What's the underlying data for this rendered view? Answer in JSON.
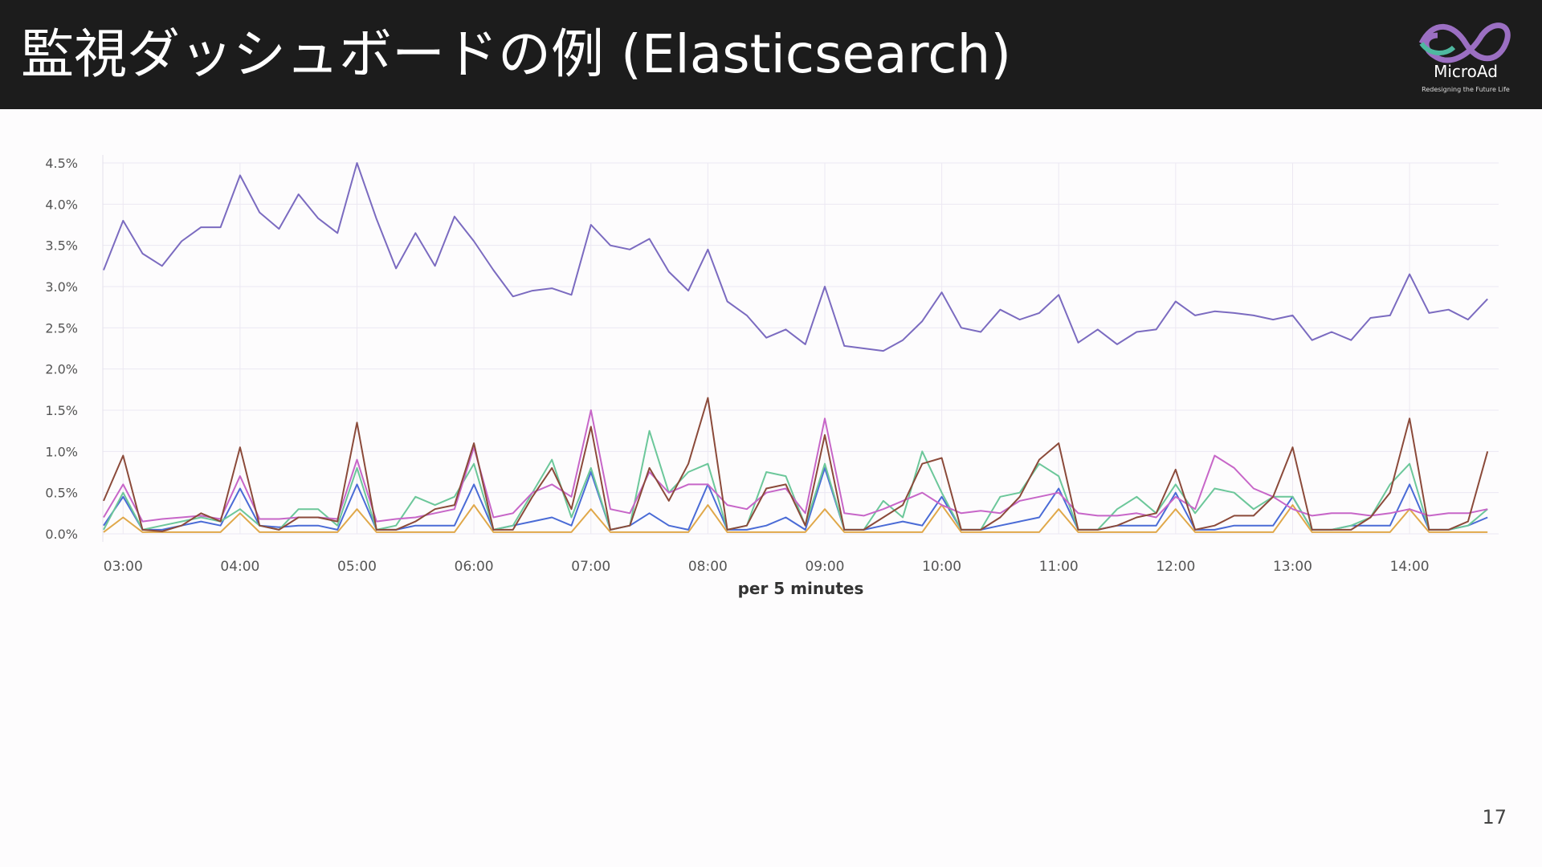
{
  "header": {
    "title": "監視ダッシュボードの例 (Elasticsearch)",
    "logo": "MicroAd",
    "tagline": "Redesigning the Future Life"
  },
  "page_number": 17,
  "chart_data": {
    "type": "line",
    "xlabel": "per 5 minutes",
    "grid": true,
    "x": [
      "02:50",
      "03:00",
      "03:10",
      "03:20",
      "03:30",
      "03:40",
      "03:50",
      "04:00",
      "04:10",
      "04:20",
      "04:30",
      "04:40",
      "04:50",
      "05:00",
      "05:10",
      "05:20",
      "05:30",
      "05:40",
      "05:50",
      "06:00",
      "06:10",
      "06:20",
      "06:30",
      "06:40",
      "06:50",
      "07:00",
      "07:10",
      "07:20",
      "07:30",
      "07:40",
      "07:50",
      "08:00",
      "08:10",
      "08:20",
      "08:30",
      "08:40",
      "08:50",
      "09:00",
      "09:10",
      "09:20",
      "09:30",
      "09:40",
      "09:50",
      "10:00",
      "10:10",
      "10:20",
      "10:30",
      "10:40",
      "10:50",
      "11:00",
      "11:10",
      "11:20",
      "11:30",
      "11:40",
      "11:50",
      "12:00",
      "12:10",
      "12:20",
      "12:30",
      "12:40",
      "12:50",
      "13:00",
      "13:10",
      "13:20",
      "13:30",
      "13:40",
      "13:50",
      "14:00",
      "14:10",
      "14:20",
      "14:30",
      "14:40"
    ],
    "xticks": [
      "03:00",
      "04:00",
      "05:00",
      "06:00",
      "07:00",
      "08:00",
      "09:00",
      "10:00",
      "11:00",
      "12:00",
      "13:00",
      "14:00"
    ],
    "ylim": [
      0,
      4.5
    ],
    "yticks": [
      {
        "value": 0,
        "label": "0.0%"
      },
      {
        "value": 0.5,
        "label": "0.5%"
      },
      {
        "value": 1,
        "label": "1.0%"
      },
      {
        "value": 1.5,
        "label": "1.5%"
      },
      {
        "value": 2,
        "label": "2.0%"
      },
      {
        "value": 2.5,
        "label": "2.5%"
      },
      {
        "value": 3,
        "label": "3.0%"
      },
      {
        "value": 3.5,
        "label": "3.5%"
      },
      {
        "value": 4,
        "label": "4.0%"
      },
      {
        "value": 4.5,
        "label": "4.5%"
      }
    ],
    "series": [
      {
        "color": "#e0a84a",
        "values": [
          0.02,
          0.2,
          0.02,
          0.02,
          0.02,
          0.02,
          0.02,
          0.25,
          0.02,
          0.02,
          0.02,
          0.02,
          0.02,
          0.3,
          0.02,
          0.02,
          0.02,
          0.02,
          0.02,
          0.35,
          0.02,
          0.02,
          0.02,
          0.02,
          0.02,
          0.3,
          0.02,
          0.02,
          0.02,
          0.02,
          0.02,
          0.35,
          0.02,
          0.02,
          0.02,
          0.02,
          0.02,
          0.3,
          0.02,
          0.02,
          0.02,
          0.02,
          0.02,
          0.35,
          0.02,
          0.02,
          0.02,
          0.02,
          0.02,
          0.3,
          0.02,
          0.02,
          0.02,
          0.02,
          0.02,
          0.3,
          0.02,
          0.02,
          0.02,
          0.02,
          0.02,
          0.35,
          0.02,
          0.02,
          0.02,
          0.02,
          0.02,
          0.3,
          0.02,
          0.02,
          0.02,
          0.02
        ]
      },
      {
        "color": "#4a6bd6",
        "values": [
          0.1,
          0.45,
          0.05,
          0.05,
          0.1,
          0.15,
          0.1,
          0.55,
          0.1,
          0.08,
          0.1,
          0.1,
          0.05,
          0.6,
          0.05,
          0.05,
          0.1,
          0.1,
          0.1,
          0.6,
          0.05,
          0.1,
          0.15,
          0.2,
          0.1,
          0.75,
          0.05,
          0.1,
          0.25,
          0.1,
          0.05,
          0.6,
          0.05,
          0.05,
          0.1,
          0.2,
          0.05,
          0.8,
          0.05,
          0.05,
          0.1,
          0.15,
          0.1,
          0.45,
          0.05,
          0.05,
          0.1,
          0.15,
          0.2,
          0.55,
          0.05,
          0.05,
          0.1,
          0.1,
          0.1,
          0.5,
          0.05,
          0.05,
          0.1,
          0.1,
          0.1,
          0.45,
          0.05,
          0.05,
          0.1,
          0.1,
          0.1,
          0.6,
          0.05,
          0.05,
          0.1,
          0.2
        ]
      },
      {
        "color": "#6cc79a",
        "values": [
          0.05,
          0.5,
          0.05,
          0.1,
          0.15,
          0.2,
          0.15,
          0.3,
          0.1,
          0.05,
          0.3,
          0.3,
          0.1,
          0.8,
          0.05,
          0.1,
          0.45,
          0.35,
          0.45,
          0.85,
          0.05,
          0.1,
          0.5,
          0.9,
          0.2,
          0.8,
          0.05,
          0.1,
          1.25,
          0.5,
          0.75,
          0.85,
          0.05,
          0.1,
          0.75,
          0.7,
          0.1,
          0.85,
          0.05,
          0.05,
          0.4,
          0.2,
          1.0,
          0.5,
          0.05,
          0.05,
          0.45,
          0.5,
          0.85,
          0.7,
          0.05,
          0.05,
          0.3,
          0.45,
          0.25,
          0.6,
          0.25,
          0.55,
          0.5,
          0.3,
          0.45,
          0.45,
          0.05,
          0.05,
          0.1,
          0.2,
          0.6,
          0.85,
          0.05,
          0.05,
          0.1,
          0.3
        ]
      },
      {
        "color": "#c766c8",
        "values": [
          0.2,
          0.6,
          0.15,
          0.18,
          0.2,
          0.22,
          0.18,
          0.7,
          0.18,
          0.18,
          0.2,
          0.2,
          0.18,
          0.9,
          0.15,
          0.18,
          0.2,
          0.25,
          0.3,
          1.05,
          0.2,
          0.25,
          0.5,
          0.6,
          0.45,
          1.5,
          0.3,
          0.25,
          0.75,
          0.5,
          0.6,
          0.6,
          0.35,
          0.3,
          0.5,
          0.55,
          0.25,
          1.4,
          0.25,
          0.22,
          0.3,
          0.4,
          0.5,
          0.35,
          0.25,
          0.28,
          0.25,
          0.4,
          0.45,
          0.5,
          0.25,
          0.22,
          0.22,
          0.25,
          0.2,
          0.45,
          0.3,
          0.95,
          0.8,
          0.55,
          0.45,
          0.3,
          0.22,
          0.25,
          0.25,
          0.22,
          0.25,
          0.3,
          0.22,
          0.25,
          0.25,
          0.3
        ]
      },
      {
        "color": "#8b4a3a",
        "values": [
          0.4,
          0.95,
          0.05,
          0.03,
          0.1,
          0.25,
          0.15,
          1.05,
          0.1,
          0.05,
          0.2,
          0.2,
          0.15,
          1.35,
          0.05,
          0.05,
          0.15,
          0.3,
          0.35,
          1.1,
          0.05,
          0.05,
          0.45,
          0.8,
          0.3,
          1.3,
          0.05,
          0.1,
          0.8,
          0.4,
          0.85,
          1.65,
          0.05,
          0.1,
          0.55,
          0.6,
          0.1,
          1.2,
          0.05,
          0.05,
          0.2,
          0.35,
          0.85,
          0.92,
          0.05,
          0.05,
          0.2,
          0.45,
          0.9,
          1.1,
          0.05,
          0.05,
          0.1,
          0.2,
          0.25,
          0.78,
          0.05,
          0.1,
          0.22,
          0.22,
          0.45,
          1.05,
          0.05,
          0.05,
          0.05,
          0.2,
          0.5,
          1.4,
          0.05,
          0.05,
          0.15,
          1.0
        ]
      },
      {
        "color": "#7b6bc0",
        "values": [
          3.2,
          3.8,
          3.4,
          3.25,
          3.55,
          3.72,
          3.72,
          4.35,
          3.9,
          3.7,
          4.12,
          3.83,
          3.65,
          4.5,
          3.82,
          3.22,
          3.65,
          3.25,
          3.85,
          3.55,
          3.2,
          2.88,
          2.95,
          2.98,
          2.9,
          3.75,
          3.5,
          3.45,
          3.58,
          3.18,
          2.95,
          3.45,
          2.82,
          2.65,
          2.38,
          2.48,
          2.3,
          3.0,
          2.28,
          2.25,
          2.22,
          2.35,
          2.58,
          2.93,
          2.5,
          2.45,
          2.72,
          2.6,
          2.68,
          2.9,
          2.32,
          2.48,
          2.3,
          2.45,
          2.48,
          2.82,
          2.65,
          2.7,
          2.68,
          2.65,
          2.6,
          2.65,
          2.35,
          2.45,
          2.35,
          2.62,
          2.65,
          3.15,
          2.68,
          2.72,
          2.6,
          2.85
        ]
      }
    ]
  }
}
